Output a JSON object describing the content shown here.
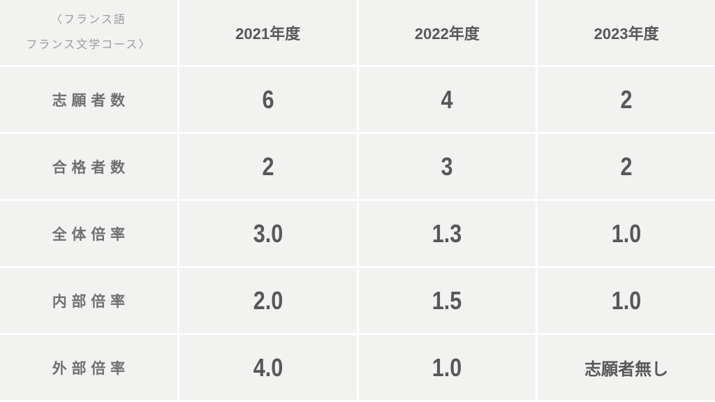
{
  "title": {
    "line1": "〈フランス語",
    "line2": "フランス文学コース〉"
  },
  "columns": [
    "2021年度",
    "2022年度",
    "2023年度"
  ],
  "rows": [
    {
      "label": "志願者数",
      "values": [
        "6",
        "4",
        "2"
      ]
    },
    {
      "label": "合格者数",
      "values": [
        "2",
        "3",
        "2"
      ]
    },
    {
      "label": "全体倍率",
      "values": [
        "3.0",
        "1.3",
        "1.0"
      ]
    },
    {
      "label": "内部倍率",
      "values": [
        "2.0",
        "1.5",
        "1.0"
      ]
    },
    {
      "label": "外部倍率",
      "values": [
        "4.0",
        "1.0",
        "志願者無し"
      ]
    }
  ],
  "colors": {
    "cellbg": "#f2f2f1",
    "line": "#ffffff",
    "dark": "#595757",
    "label": "#717071",
    "title": "#9a9a9a",
    "magenta": "#e4007f",
    "blue": "#1b7ac4"
  },
  "chart_data": {
    "type": "table",
    "title": "〈フランス語フランス文学コース〉",
    "columns": [
      "2021年度",
      "2022年度",
      "2023年度"
    ],
    "rows": [
      {
        "label": "志願者数",
        "values": [
          6,
          4,
          2
        ]
      },
      {
        "label": "合格者数",
        "values": [
          2,
          3,
          2
        ]
      },
      {
        "label": "全体倍率",
        "values": [
          3.0,
          1.3,
          1.0
        ]
      },
      {
        "label": "内部倍率",
        "values": [
          2.0,
          1.5,
          1.0
        ]
      },
      {
        "label": "外部倍率",
        "values": [
          4.0,
          1.0,
          "志願者無し"
        ]
      }
    ],
    "notes": "内部倍率 row rendered in magenta, 外部倍率 row in blue, other rows in dark gray"
  }
}
